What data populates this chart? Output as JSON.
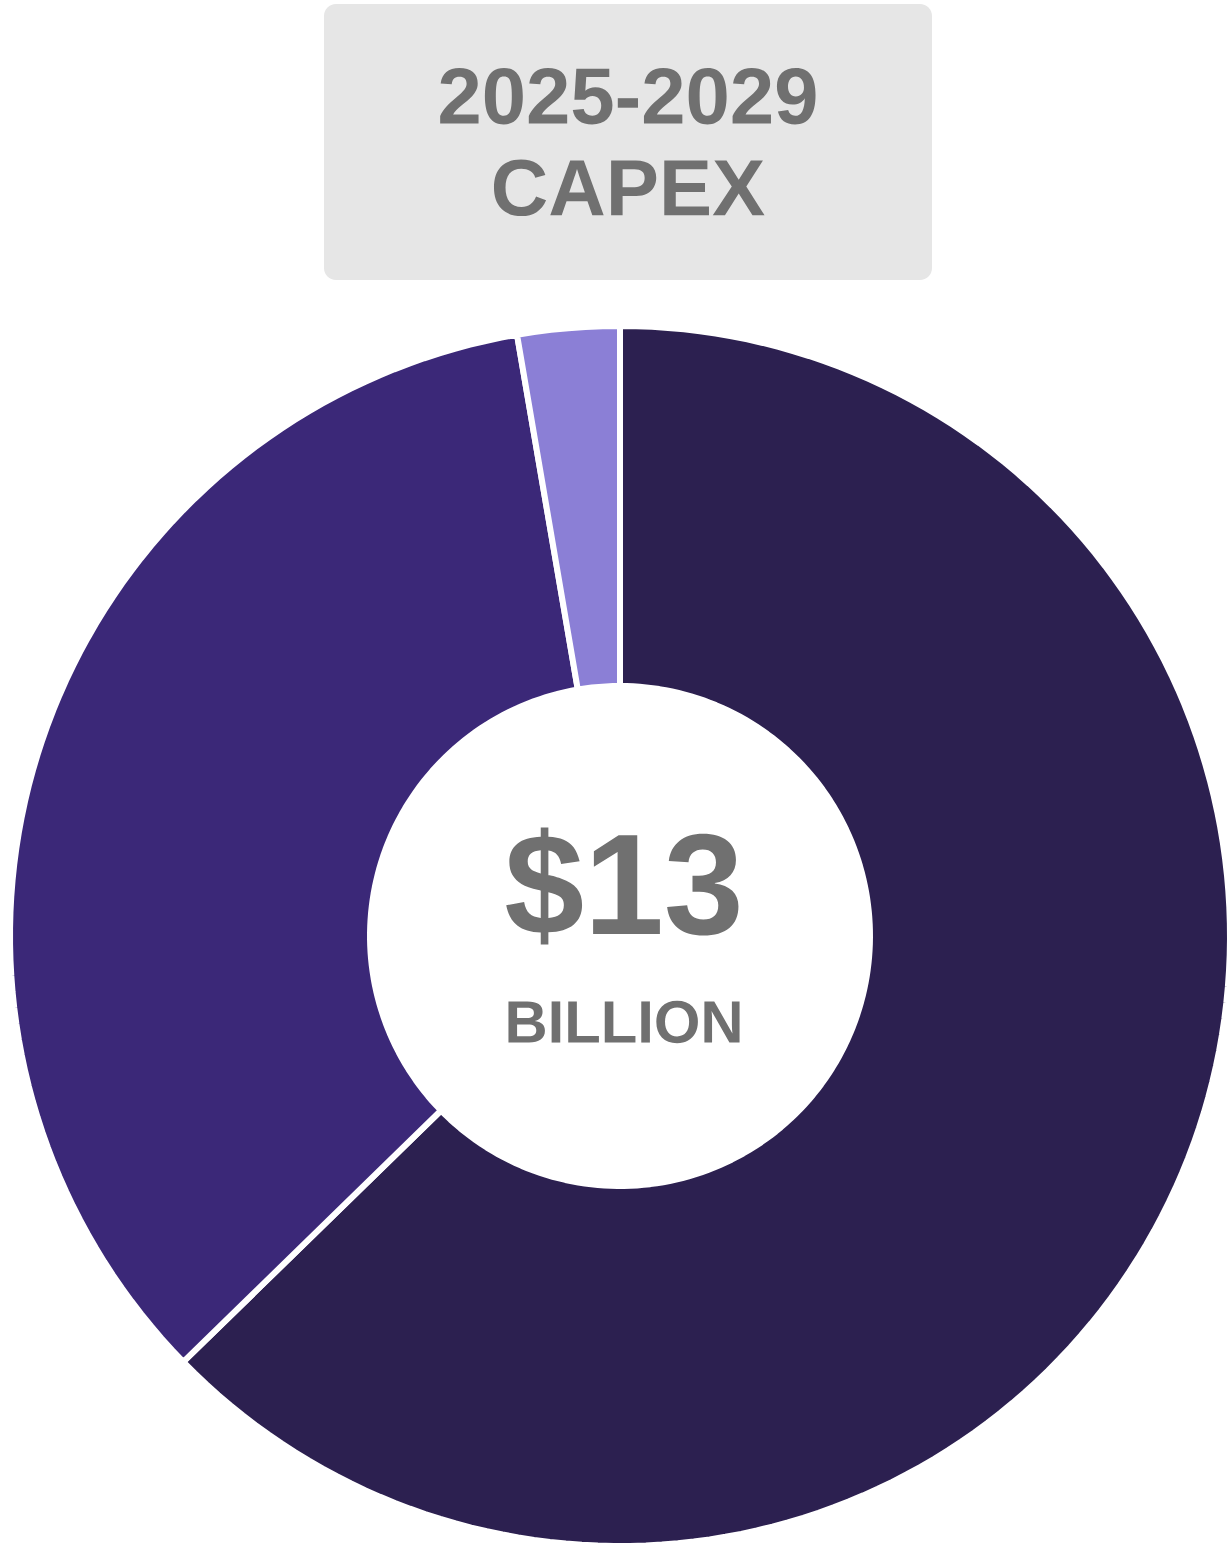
{
  "chart_data": {
    "type": "donut",
    "title": "2025-2029 CAPEX",
    "categories": [
      null,
      null,
      null
    ],
    "values": [
      62.7,
      34.6,
      2.7
    ],
    "colors": [
      "#2c2050",
      "#3b2878",
      "#8b7fd6"
    ],
    "annotations": [
      "$13",
      "BILLION"
    ]
  }
}
